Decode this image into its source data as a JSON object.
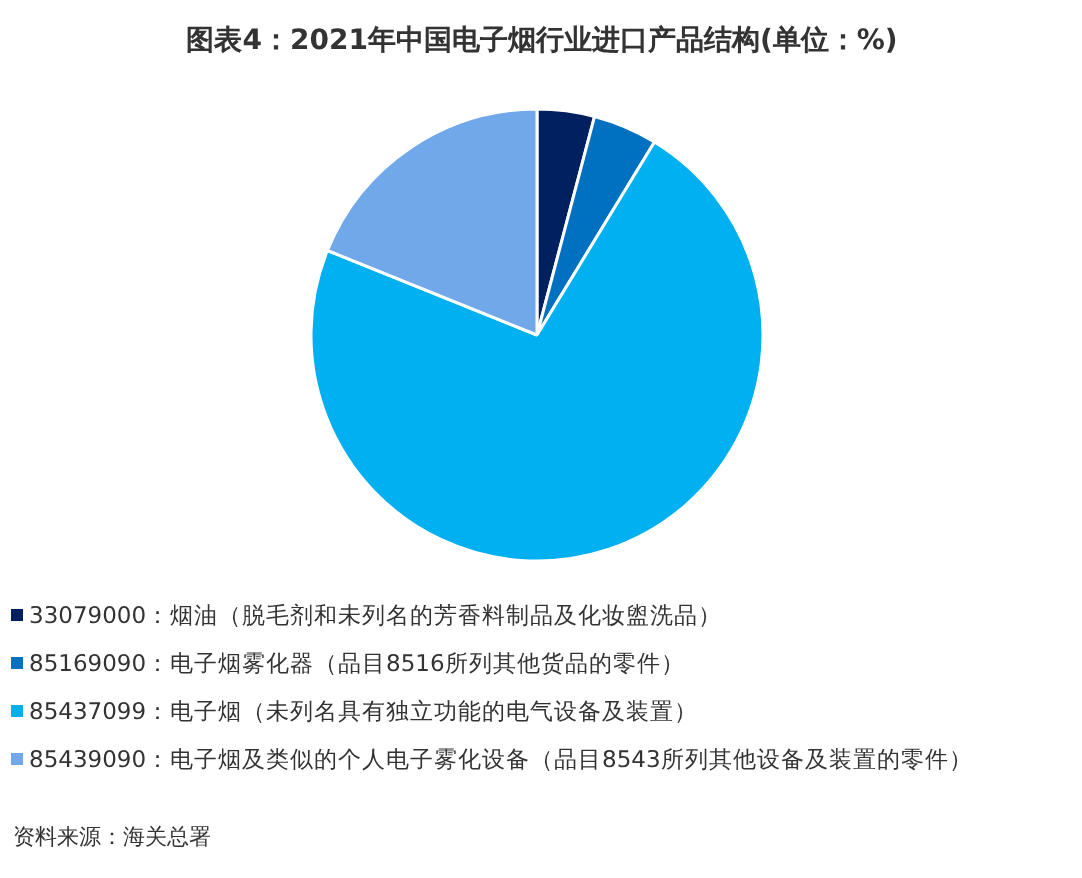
{
  "chart_data": {
    "type": "pie",
    "title": "图表4：2021年中国电子烟行业进口产品结构(单位：%)",
    "categories": [
      "33079000：烟油（脱毛剂和未列名的芳香料制品及化妆盥洗品）",
      "85169090：电子烟雾化器（品目8516所列其他货品的零件）",
      "85437099：电子烟（未列名具有独立功能的电气设备及装置）",
      "85439090：电子烟及类似的个人电子雾化设备（品目8543所列其他设备及装置的零件）"
    ],
    "values": [
      4.1,
      4.6,
      72.4,
      18.9
    ],
    "colors": [
      "#002060",
      "#0070c0",
      "#00b0f0",
      "#70a8ea"
    ],
    "legend": "bottom",
    "annotations": [
      "资料来源：海关总署"
    ]
  }
}
